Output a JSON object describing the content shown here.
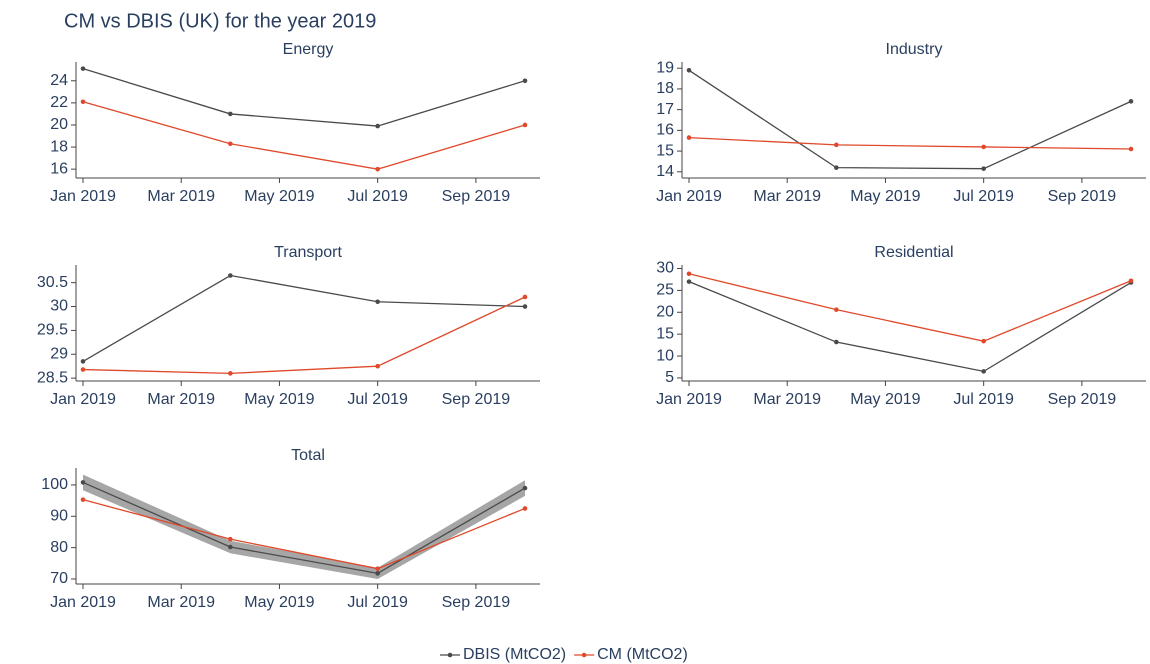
{
  "title": "CM vs DBIS (UK) for the year 2019",
  "chart_data": [
    {
      "type": "line",
      "title": "Energy",
      "x": [
        "2019-01",
        "2019-04",
        "2019-07",
        "2019-10"
      ],
      "series": [
        {
          "name": "DBIS (MtCO2)",
          "color": "#4a4a4a",
          "values": [
            25.1,
            21.0,
            19.9,
            24.0
          ]
        },
        {
          "name": "CM (MtCO2)",
          "color": "#e0492b",
          "values": [
            22.1,
            18.3,
            16.0,
            20.0
          ]
        }
      ],
      "xlim": [
        "2019-01",
        "2019-10"
      ],
      "xticks": [
        {
          "value": "2019-01",
          "label": "Jan 2019"
        },
        {
          "value": "2019-03",
          "label": "Mar 2019"
        },
        {
          "value": "2019-05",
          "label": "May 2019"
        },
        {
          "value": "2019-07",
          "label": "Jul 2019"
        },
        {
          "value": "2019-09",
          "label": "Sep 2019"
        }
      ],
      "ylim": [
        15.2,
        25.7
      ],
      "yticks": [
        16,
        18,
        20,
        22,
        24
      ]
    },
    {
      "type": "line",
      "title": "Industry",
      "x": [
        "2019-01",
        "2019-04",
        "2019-07",
        "2019-10"
      ],
      "series": [
        {
          "name": "DBIS (MtCO2)",
          "color": "#4a4a4a",
          "values": [
            18.9,
            14.2,
            14.15,
            17.4
          ]
        },
        {
          "name": "CM (MtCO2)",
          "color": "#e0492b",
          "values": [
            15.65,
            15.3,
            15.2,
            15.1
          ]
        }
      ],
      "xlim": [
        "2019-01",
        "2019-10"
      ],
      "xticks": [
        {
          "value": "2019-01",
          "label": "Jan 2019"
        },
        {
          "value": "2019-03",
          "label": "Mar 2019"
        },
        {
          "value": "2019-05",
          "label": "May 2019"
        },
        {
          "value": "2019-07",
          "label": "Jul 2019"
        },
        {
          "value": "2019-09",
          "label": "Sep 2019"
        }
      ],
      "ylim": [
        13.7,
        19.3
      ],
      "yticks": [
        14,
        15,
        16,
        17,
        18,
        19
      ]
    },
    {
      "type": "line",
      "title": "Transport",
      "x": [
        "2019-01",
        "2019-04",
        "2019-07",
        "2019-10"
      ],
      "series": [
        {
          "name": "DBIS (MtCO2)",
          "color": "#4a4a4a",
          "values": [
            28.85,
            30.65,
            30.1,
            30.0
          ]
        },
        {
          "name": "CM (MtCO2)",
          "color": "#e0492b",
          "values": [
            28.68,
            28.6,
            28.75,
            30.2
          ]
        }
      ],
      "xlim": [
        "2019-01",
        "2019-10"
      ],
      "xticks": [
        {
          "value": "2019-01",
          "label": "Jan 2019"
        },
        {
          "value": "2019-03",
          "label": "Mar 2019"
        },
        {
          "value": "2019-05",
          "label": "May 2019"
        },
        {
          "value": "2019-07",
          "label": "Jul 2019"
        },
        {
          "value": "2019-09",
          "label": "Sep 2019"
        }
      ],
      "ylim": [
        28.44,
        30.87
      ],
      "yticks": [
        28.5,
        29,
        29.5,
        30,
        30.5
      ]
    },
    {
      "type": "line",
      "title": "Residential",
      "x": [
        "2019-01",
        "2019-04",
        "2019-07",
        "2019-10"
      ],
      "series": [
        {
          "name": "DBIS (MtCO2)",
          "color": "#4a4a4a",
          "values": [
            27.0,
            13.2,
            6.5,
            26.8
          ]
        },
        {
          "name": "CM (MtCO2)",
          "color": "#e0492b",
          "values": [
            28.8,
            20.6,
            13.4,
            27.2
          ]
        }
      ],
      "xlim": [
        "2019-01",
        "2019-10"
      ],
      "xticks": [
        {
          "value": "2019-01",
          "label": "Jan 2019"
        },
        {
          "value": "2019-03",
          "label": "Mar 2019"
        },
        {
          "value": "2019-05",
          "label": "May 2019"
        },
        {
          "value": "2019-07",
          "label": "Jul 2019"
        },
        {
          "value": "2019-09",
          "label": "Sep 2019"
        }
      ],
      "ylim": [
        4.3,
        30.8
      ],
      "yticks": [
        5,
        10,
        15,
        20,
        25,
        30
      ]
    },
    {
      "type": "line",
      "title": "Total",
      "x": [
        "2019-01",
        "2019-04",
        "2019-07",
        "2019-10"
      ],
      "series": [
        {
          "name": "DBIS (MtCO2)",
          "color": "#4a4a4a",
          "values": [
            100.8,
            80.2,
            71.8,
            99.0
          ],
          "errors": [
            2.5,
            2.0,
            1.8,
            2.5
          ]
        },
        {
          "name": "CM (MtCO2)",
          "color": "#e0492b",
          "values": [
            95.3,
            82.7,
            73.3,
            92.5
          ]
        }
      ],
      "xlim": [
        "2019-01",
        "2019-10"
      ],
      "xticks": [
        {
          "value": "2019-01",
          "label": "Jan 2019"
        },
        {
          "value": "2019-03",
          "label": "Mar 2019"
        },
        {
          "value": "2019-05",
          "label": "May 2019"
        },
        {
          "value": "2019-07",
          "label": "Jul 2019"
        },
        {
          "value": "2019-09",
          "label": "Sep 2019"
        }
      ],
      "ylim": [
        68.4,
        105.4
      ],
      "yticks": [
        70,
        80,
        90,
        100
      ]
    }
  ]
}
